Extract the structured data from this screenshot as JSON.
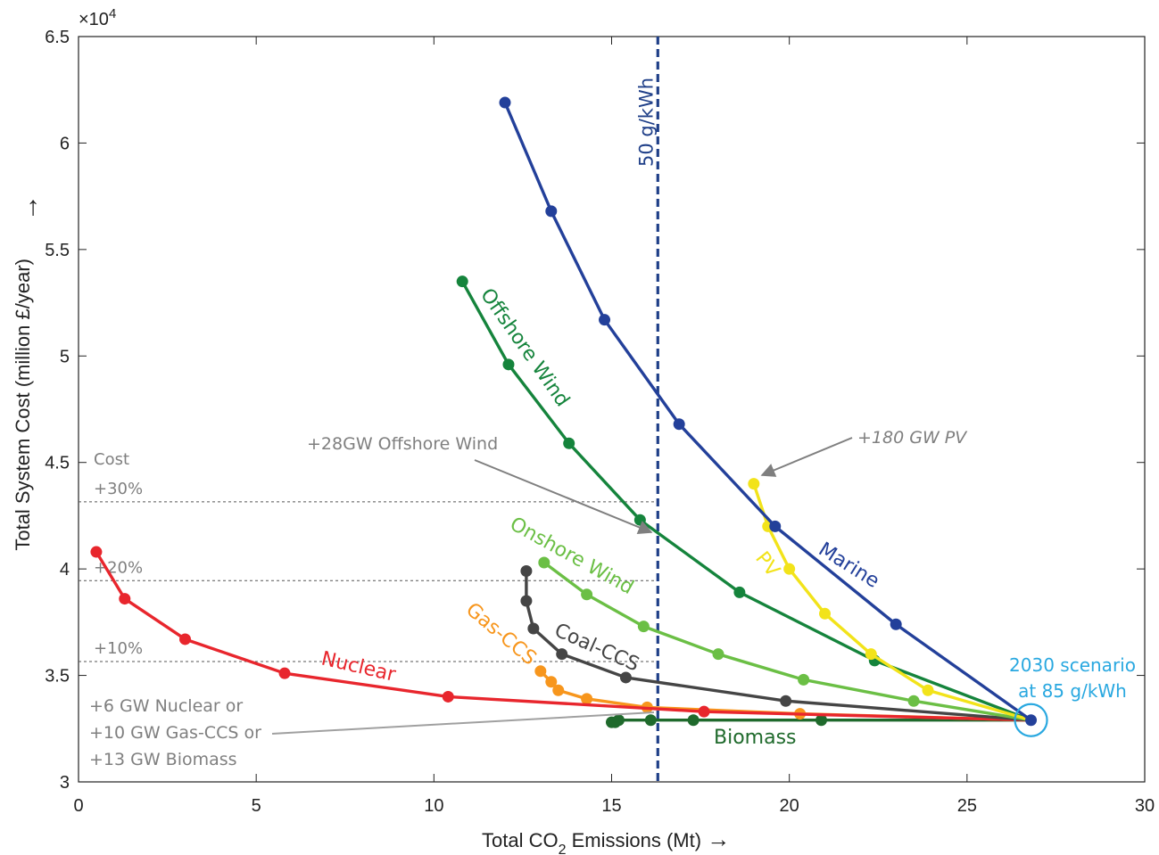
{
  "chart_data": {
    "type": "line",
    "xlabel": "Total CO",
    "xlabel_sub": "2",
    "xlabel_tail": "Emissions (Mt)",
    "xlabel_arrow": "→",
    "ylabel": "Total System Cost (million £/year)",
    "ylabel_arrow": "→",
    "xlim": [
      0,
      30
    ],
    "ylim": [
      30000,
      65000
    ],
    "x_ticks": [
      0,
      5,
      10,
      15,
      20,
      25,
      30
    ],
    "y_ticks": [
      3,
      3.5,
      4,
      4.5,
      5,
      5.5,
      6,
      6.5
    ],
    "y_multiplier_base": "×10",
    "y_multiplier_exp": "4",
    "grid": false,
    "baseline": {
      "label_line1": "2030 scenario",
      "label_line2": "at 85 g/kWh",
      "x": 26.8,
      "y": 32900,
      "color": "#29a8e0"
    },
    "series": [
      {
        "name": "Nuclear",
        "color": "#e8262d",
        "x": [
          0.5,
          1.3,
          3.0,
          5.8,
          10.4,
          17.6,
          26.8
        ],
        "y": [
          40800,
          38600,
          36700,
          35100,
          34000,
          33300,
          32900
        ]
      },
      {
        "name": "Gas-CCS",
        "color": "#f7961d",
        "x": [
          13.0,
          13.3,
          13.5,
          14.3,
          16.0,
          20.3,
          26.8
        ],
        "y": [
          35200,
          34700,
          34300,
          33900,
          33500,
          33200,
          32900
        ]
      },
      {
        "name": "Coal-CCS",
        "color": "#454545",
        "x": [
          12.6,
          12.6,
          12.8,
          13.6,
          15.4,
          19.9,
          26.8
        ],
        "y": [
          39900,
          38500,
          37200,
          36000,
          34900,
          33800,
          32900
        ]
      },
      {
        "name": "Onshore Wind",
        "color": "#6bbf45",
        "x": [
          13.1,
          14.3,
          15.9,
          18.0,
          20.4,
          23.5,
          26.8
        ],
        "y": [
          40300,
          38800,
          37300,
          36000,
          34800,
          33800,
          32900
        ]
      },
      {
        "name": "Offshore Wind",
        "color": "#15843c",
        "x": [
          10.8,
          12.1,
          13.8,
          15.8,
          18.6,
          22.4,
          26.8
        ],
        "y": [
          53500,
          49600,
          45900,
          42300,
          38900,
          35700,
          32900
        ]
      },
      {
        "name": "Biomass",
        "color": "#1f6a2c",
        "x": [
          15.0,
          15.1,
          15.2,
          16.1,
          17.3,
          20.9,
          26.8
        ],
        "y": [
          32800,
          32800,
          32900,
          32900,
          32900,
          32900,
          32900
        ]
      },
      {
        "name": "PV",
        "color": "#f2e31a",
        "x": [
          19.0,
          19.4,
          20.0,
          21.0,
          22.3,
          23.9,
          26.8
        ],
        "y": [
          44000,
          42000,
          40000,
          37900,
          36000,
          34300,
          32900
        ]
      },
      {
        "name": "Marine",
        "color": "#23409a",
        "x": [
          12.0,
          13.3,
          14.8,
          16.9,
          19.6,
          23.0,
          26.8
        ],
        "y": [
          61900,
          56800,
          51700,
          46800,
          42000,
          37400,
          32900
        ]
      }
    ],
    "threshold_line": {
      "label": "50 g/kWh",
      "x": 16.3,
      "color": "#1f3f88"
    },
    "cost_lines": [
      {
        "label": "+30%",
        "y": 43150
      },
      {
        "label": "+20%",
        "y": 39450
      },
      {
        "label": "+10%",
        "y": 35650
      }
    ],
    "cost_title": "Cost",
    "annotations": {
      "offshore_extra": "+28GW Offshore Wind",
      "pv_extra": "+180 GW PV",
      "firm_line1": "+6 GW Nuclear or",
      "firm_line2": "+10 GW Gas-CCS or",
      "firm_line3": "+13 GW Biomass"
    },
    "colors": {
      "axis": "#222222",
      "annotation": "#7f7f7f",
      "cost_line": "#555555"
    }
  }
}
